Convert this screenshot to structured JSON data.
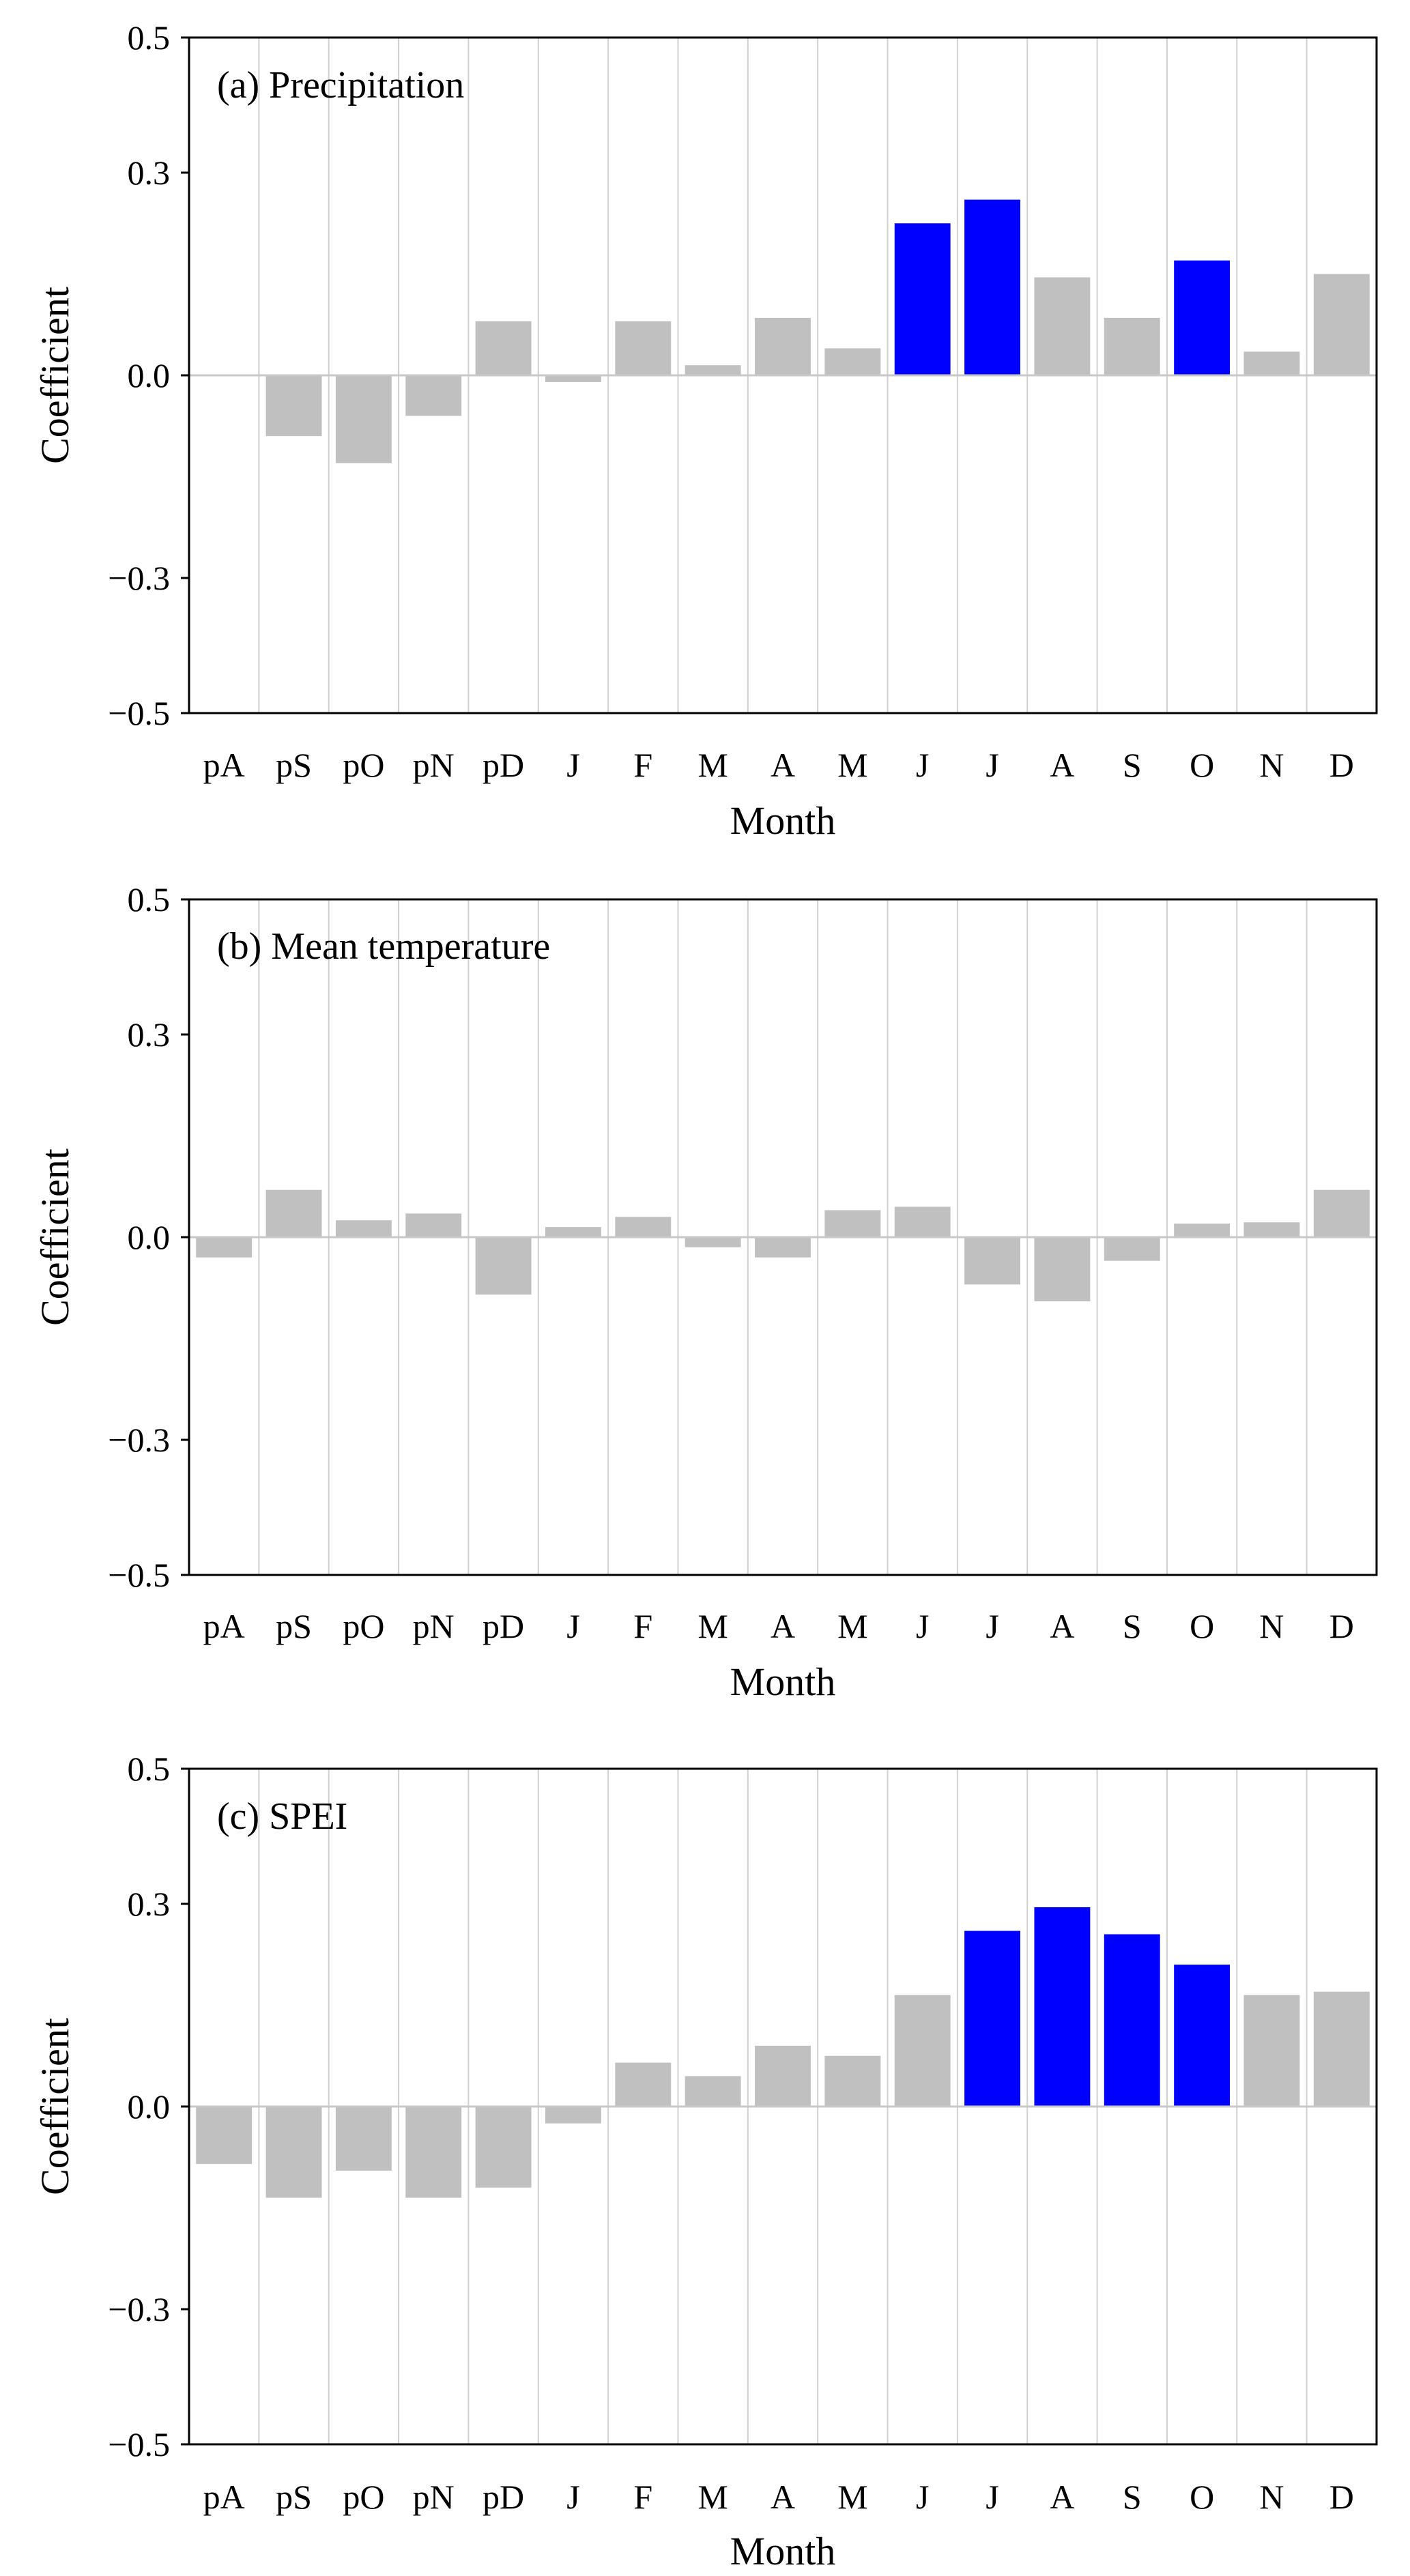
{
  "colors": {
    "significant": "#0000FF",
    "not_significant": "#C0C0C0",
    "grid": "#D0D0D0",
    "axis": "#000000",
    "zero_line": "#C8C8C8"
  },
  "chart_data": [
    {
      "type": "bar",
      "title": "(a) Precipitation",
      "xlabel": "Month",
      "ylabel": "Coefficient",
      "ylim": [
        -0.5,
        0.5
      ],
      "yticks": [
        0.5,
        0.3,
        0.0,
        -0.3,
        -0.5
      ],
      "ytick_labels": [
        "0.5",
        "0.3",
        "0.0",
        "−0.3",
        "−0.5"
      ],
      "categories": [
        "pA",
        "pS",
        "pO",
        "pN",
        "pD",
        "J",
        "F",
        "M",
        "A",
        "M",
        "J",
        "J",
        "A",
        "S",
        "O",
        "N",
        "D"
      ],
      "values": [
        0.0,
        -0.09,
        -0.13,
        -0.06,
        0.08,
        -0.01,
        0.08,
        0.015,
        0.085,
        0.04,
        0.225,
        0.26,
        0.145,
        0.085,
        0.17,
        0.035,
        0.15
      ],
      "significant": [
        false,
        false,
        false,
        false,
        false,
        false,
        false,
        false,
        false,
        false,
        true,
        true,
        false,
        false,
        true,
        false,
        false
      ]
    },
    {
      "type": "bar",
      "title": "(b) Mean temperature",
      "xlabel": "Month",
      "ylabel": "Coefficient",
      "ylim": [
        -0.5,
        0.5
      ],
      "yticks": [
        0.5,
        0.3,
        0.0,
        -0.3,
        -0.5
      ],
      "ytick_labels": [
        "0.5",
        "0.3",
        "0.0",
        "−0.3",
        "−0.5"
      ],
      "categories": [
        "pA",
        "pS",
        "pO",
        "pN",
        "pD",
        "J",
        "F",
        "M",
        "A",
        "M",
        "J",
        "J",
        "A",
        "S",
        "O",
        "N",
        "D"
      ],
      "values": [
        -0.03,
        0.07,
        0.025,
        0.035,
        -0.085,
        0.015,
        0.03,
        -0.015,
        -0.03,
        0.04,
        0.045,
        -0.07,
        -0.095,
        -0.035,
        0.02,
        0.022,
        0.07
      ],
      "significant": [
        false,
        false,
        false,
        false,
        false,
        false,
        false,
        false,
        false,
        false,
        false,
        false,
        false,
        false,
        false,
        false,
        false
      ]
    },
    {
      "type": "bar",
      "title": "(c) SPEI",
      "xlabel": "Month",
      "ylabel": "Coefficient",
      "ylim": [
        -0.5,
        0.5
      ],
      "yticks": [
        0.5,
        0.3,
        0.0,
        -0.3,
        -0.5
      ],
      "ytick_labels": [
        "0.5",
        "0.3",
        "0.0",
        "−0.3",
        "−0.5"
      ],
      "categories": [
        "pA",
        "pS",
        "pO",
        "pN",
        "pD",
        "J",
        "F",
        "M",
        "A",
        "M",
        "J",
        "J",
        "A",
        "S",
        "O",
        "N",
        "D"
      ],
      "values": [
        -0.085,
        -0.135,
        -0.095,
        -0.135,
        -0.12,
        -0.025,
        0.065,
        0.045,
        0.09,
        0.075,
        0.165,
        0.26,
        0.295,
        0.255,
        0.21,
        0.165,
        0.17
      ],
      "significant": [
        false,
        false,
        false,
        false,
        false,
        false,
        false,
        false,
        false,
        false,
        false,
        true,
        true,
        true,
        true,
        false,
        false
      ]
    }
  ]
}
